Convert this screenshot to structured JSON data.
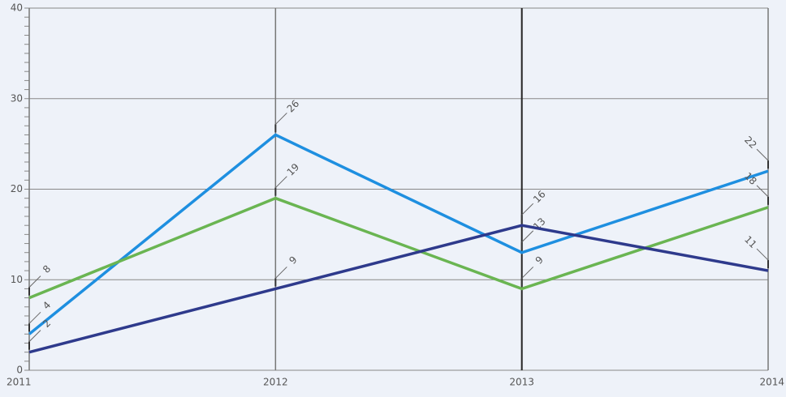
{
  "chart_data": {
    "type": "line",
    "categories": [
      "2011",
      "2012",
      "2013",
      "2014"
    ],
    "series": [
      {
        "color": "#1e8fe0",
        "values": [
          4,
          26,
          13,
          22
        ]
      },
      {
        "color": "#6ab552",
        "values": [
          8,
          19,
          9,
          18
        ]
      },
      {
        "color": "#2e3a8c",
        "values": [
          2,
          9,
          16,
          11
        ]
      }
    ],
    "ylim": [
      0,
      40
    ],
    "yticks": [
      0,
      10,
      20,
      30,
      40
    ],
    "grid": true
  }
}
